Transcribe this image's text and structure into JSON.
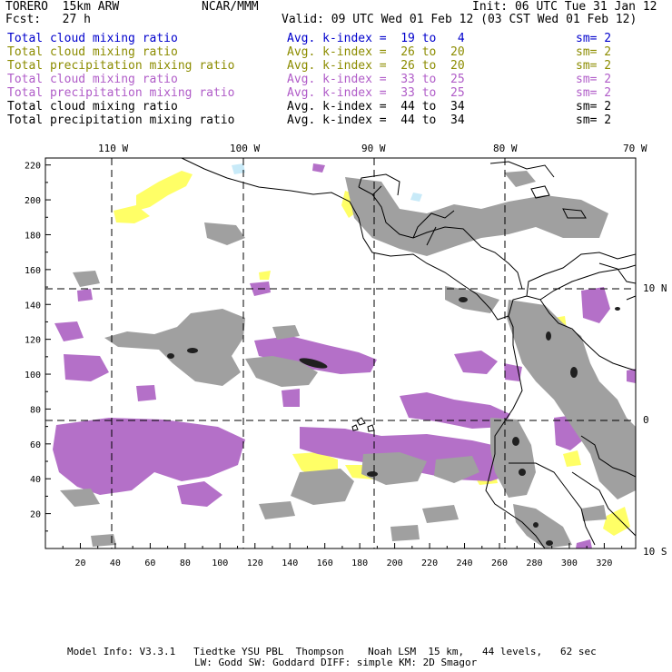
{
  "header": {
    "left1": "TORERO  15km ARW",
    "center1": "NCAR/MMM",
    "right1": "Init: 06 UTC Tue 31 Jan 12",
    "left2": "Fcst:   27 h",
    "right2": "Valid: 09 UTC Wed 01 Feb 12 (03 CST Wed 01 Feb 12)"
  },
  "legend": [
    {
      "field": "Total cloud mixing ratio",
      "kidx": "Avg. k-index =  19 to   4",
      "sm": "sm= 2",
      "color": "#0000cc"
    },
    {
      "field": "Total cloud mixing ratio",
      "kidx": "Avg. k-index =  26 to  20",
      "sm": "sm= 2",
      "color": "#8c8c00"
    },
    {
      "field": "Total precipitation mixing ratio",
      "kidx": "Avg. k-index =  26 to  20",
      "sm": "sm= 2",
      "color": "#8c8c00"
    },
    {
      "field": "Total cloud mixing ratio",
      "kidx": "Avg. k-index =  33 to  25",
      "sm": "sm= 2",
      "color": "#b05cc8"
    },
    {
      "field": "Total precipitation mixing ratio",
      "kidx": "Avg. k-index =  33 to  25",
      "sm": "sm= 2",
      "color": "#b05cc8"
    },
    {
      "field": "Total cloud mixing ratio",
      "kidx": "Avg. k-index =  44 to  34",
      "sm": "sm= 2",
      "color": "#000000"
    },
    {
      "field": "Total precipitation mixing ratio",
      "kidx": "Avg. k-index =  44 to  34",
      "sm": "sm= 2",
      "color": "#000000"
    }
  ],
  "map": {
    "lon_labels": [
      "110 W",
      "100 W",
      "90 W",
      "80 W",
      "70 W"
    ],
    "lat_labels": [
      "10 N",
      "0",
      "10 S"
    ],
    "x_ticks": [
      "20",
      "40",
      "60",
      "80",
      "100",
      "120",
      "140",
      "160",
      "180",
      "200",
      "220",
      "240",
      "260",
      "280",
      "300",
      "320"
    ],
    "y_ticks": [
      "20",
      "40",
      "60",
      "80",
      "100",
      "120",
      "140",
      "160",
      "180",
      "200",
      "220"
    ],
    "colors": {
      "cloud_low": "#a0a0a0",
      "cloud_high": "#202020",
      "precip_mid": "#b470c8",
      "precip_low": "#ffff66",
      "cloud_min": "#c8eaf8"
    }
  },
  "footer": {
    "line1": "Model Info: V3.3.1   Tiedtke YSU PBL  Thompson    Noah LSM  15 km,   44 levels,   62 sec",
    "line2": "LW: Godd SW: Goddard DIFF: simple KM: 2D Smagor"
  }
}
